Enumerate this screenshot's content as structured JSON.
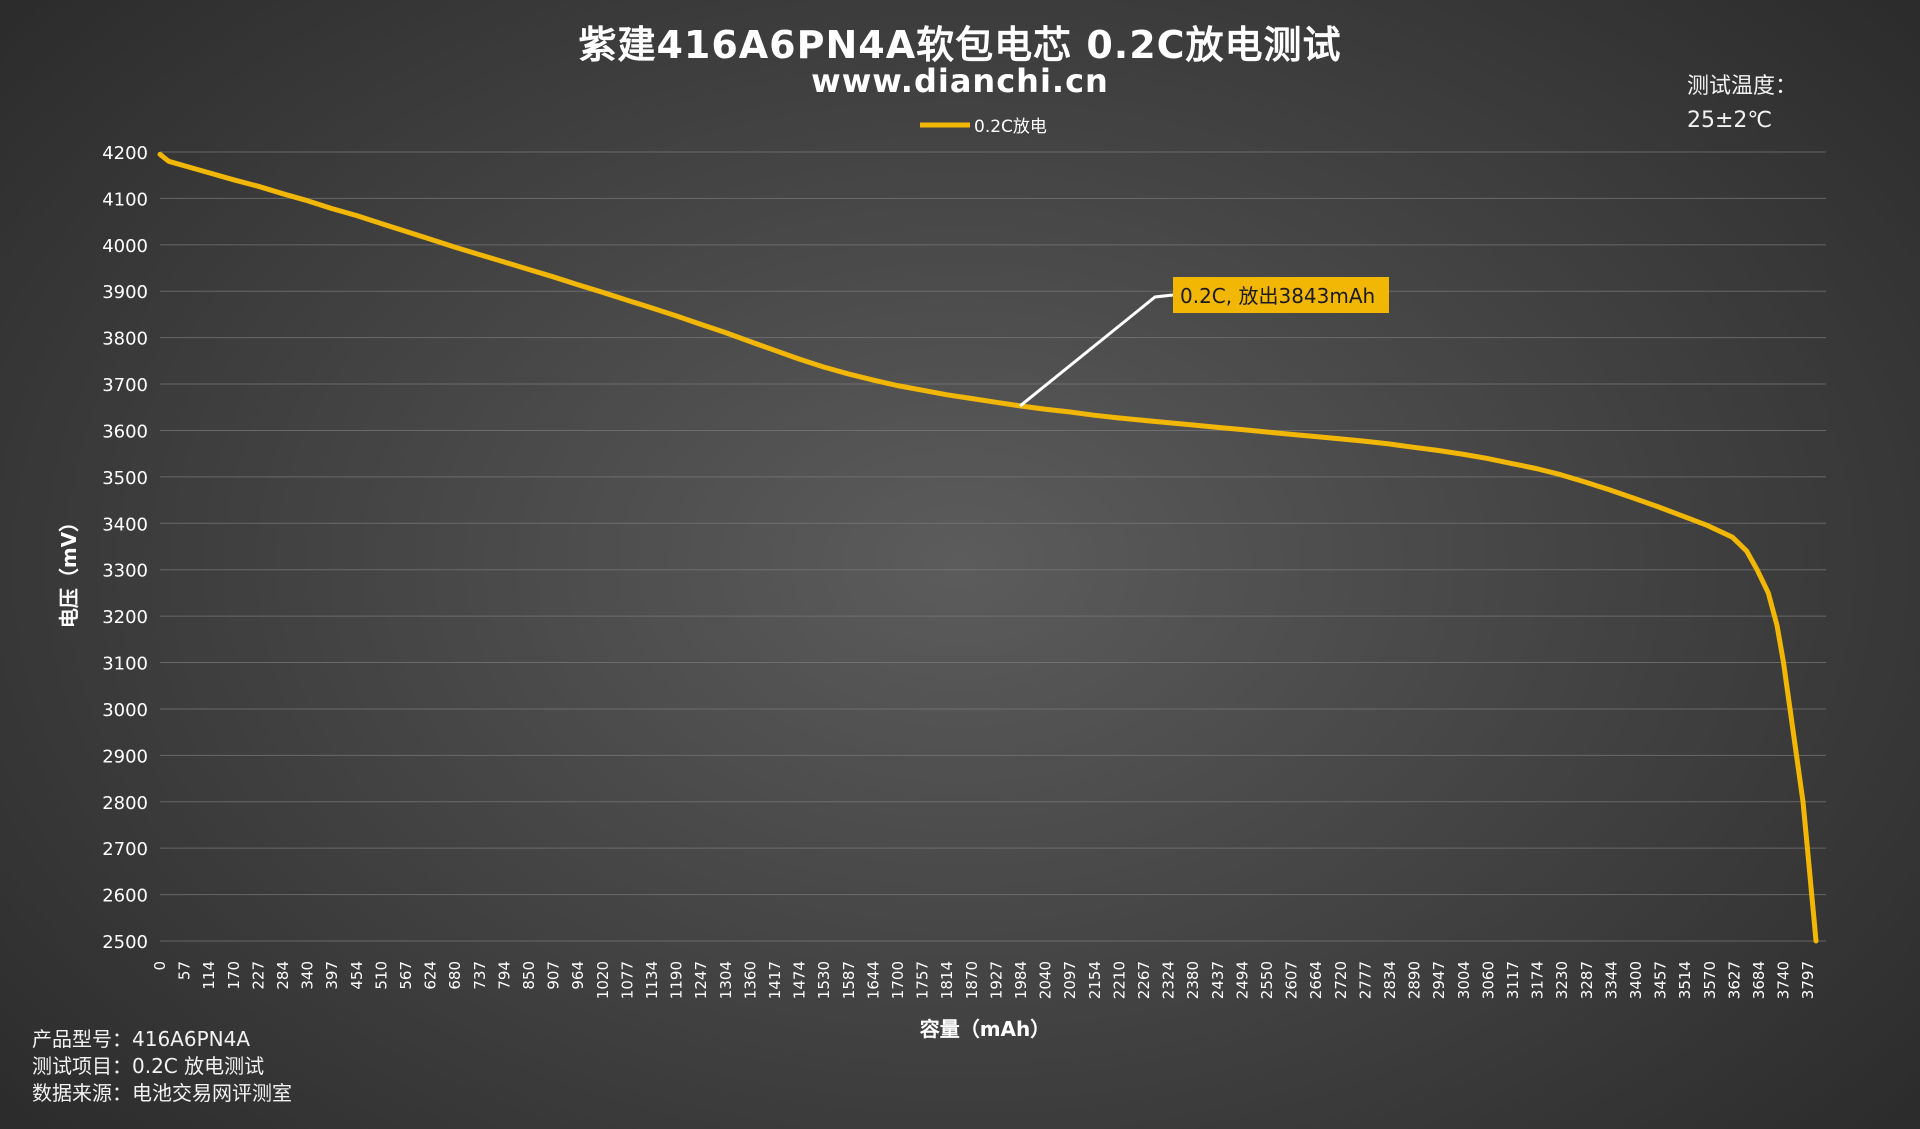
{
  "header": {
    "title": "紫建416A6PN4A软包电芯 0.2C放电测试",
    "website": "www.dianchi.cn"
  },
  "test_temperature": {
    "label": "测试温度：",
    "value": "25±2℃"
  },
  "footer": {
    "product_model_label": "产品型号：",
    "product_model_value": "416A6PN4A",
    "test_item_label": "测试项目：",
    "test_item_value": "0.2C 放电测试",
    "data_source_label": "数据来源：",
    "data_source_value": "电池交易网评测室"
  },
  "chart_data": {
    "type": "line",
    "title": "紫建416A6PN4A软包电芯 0.2C放电测试",
    "xlabel": "容量（mAh）",
    "ylabel": "电压（mV）",
    "xlim": [
      0,
      3843
    ],
    "ylim": [
      2500,
      4200
    ],
    "y_ticks": [
      4200,
      4100,
      4000,
      3900,
      3800,
      3700,
      3600,
      3500,
      3400,
      3300,
      3200,
      3100,
      3000,
      2900,
      2800,
      2700,
      2600,
      2500
    ],
    "x_tick_labels": [
      "0",
      "57",
      "114",
      "170",
      "227",
      "284",
      "340",
      "397",
      "454",
      "510",
      "567",
      "624",
      "680",
      "737",
      "794",
      "850",
      "907",
      "964",
      "1020",
      "1077",
      "1134",
      "1190",
      "1247",
      "1304",
      "1360",
      "1417",
      "1474",
      "1530",
      "1587",
      "1644",
      "1700",
      "1757",
      "1814",
      "1870",
      "1927",
      "1984",
      "2040",
      "2097",
      "2154",
      "2210",
      "2267",
      "2324",
      "2380",
      "2437",
      "2494",
      "2550",
      "2607",
      "2664",
      "2720",
      "2777",
      "2834",
      "2890",
      "2947",
      "3004",
      "3060",
      "3117",
      "3174",
      "3230",
      "3287",
      "3344",
      "3400",
      "3457",
      "3514",
      "3570",
      "3627",
      "3684",
      "3740",
      "3797"
    ],
    "grid": true,
    "legend_position": "top-center",
    "series": [
      {
        "name": "0.2C放电",
        "color": "#f2b705",
        "points": [
          [
            0,
            4195
          ],
          [
            20,
            4180
          ],
          [
            57,
            4170
          ],
          [
            114,
            4155
          ],
          [
            170,
            4140
          ],
          [
            227,
            4126
          ],
          [
            284,
            4110
          ],
          [
            340,
            4095
          ],
          [
            397,
            4078
          ],
          [
            454,
            4063
          ],
          [
            510,
            4046
          ],
          [
            567,
            4029
          ],
          [
            624,
            4012
          ],
          [
            680,
            3995
          ],
          [
            737,
            3979
          ],
          [
            794,
            3963
          ],
          [
            850,
            3947
          ],
          [
            907,
            3931
          ],
          [
            964,
            3914
          ],
          [
            1020,
            3898
          ],
          [
            1077,
            3881
          ],
          [
            1134,
            3864
          ],
          [
            1190,
            3847
          ],
          [
            1247,
            3829
          ],
          [
            1304,
            3811
          ],
          [
            1360,
            3792
          ],
          [
            1417,
            3773
          ],
          [
            1474,
            3754
          ],
          [
            1530,
            3737
          ],
          [
            1587,
            3722
          ],
          [
            1644,
            3709
          ],
          [
            1700,
            3697
          ],
          [
            1757,
            3687
          ],
          [
            1814,
            3677
          ],
          [
            1870,
            3669
          ],
          [
            1927,
            3661
          ],
          [
            1984,
            3653
          ],
          [
            2040,
            3646
          ],
          [
            2097,
            3640
          ],
          [
            2154,
            3633
          ],
          [
            2210,
            3627
          ],
          [
            2267,
            3622
          ],
          [
            2324,
            3617
          ],
          [
            2380,
            3612
          ],
          [
            2437,
            3607
          ],
          [
            2494,
            3602
          ],
          [
            2550,
            3597
          ],
          [
            2607,
            3592
          ],
          [
            2664,
            3587
          ],
          [
            2720,
            3582
          ],
          [
            2777,
            3577
          ],
          [
            2834,
            3571
          ],
          [
            2890,
            3564
          ],
          [
            2947,
            3557
          ],
          [
            3004,
            3549
          ],
          [
            3060,
            3540
          ],
          [
            3117,
            3529
          ],
          [
            3174,
            3518
          ],
          [
            3230,
            3505
          ],
          [
            3287,
            3489
          ],
          [
            3344,
            3472
          ],
          [
            3400,
            3454
          ],
          [
            3457,
            3435
          ],
          [
            3514,
            3415
          ],
          [
            3570,
            3395
          ],
          [
            3627,
            3370
          ],
          [
            3660,
            3340
          ],
          [
            3684,
            3300
          ],
          [
            3710,
            3250
          ],
          [
            3730,
            3180
          ],
          [
            3745,
            3100
          ],
          [
            3760,
            3000
          ],
          [
            3775,
            2900
          ],
          [
            3790,
            2800
          ],
          [
            3800,
            2700
          ],
          [
            3810,
            2600
          ],
          [
            3815,
            2550
          ],
          [
            3820,
            2500
          ]
        ]
      }
    ],
    "annotation": {
      "text": "0.2C, 放出3843mAh",
      "anchor": [
        1984,
        3653
      ],
      "box_color": "#f2b705",
      "text_color": "#1a1a1a",
      "leader_color": "#ffffff"
    }
  }
}
